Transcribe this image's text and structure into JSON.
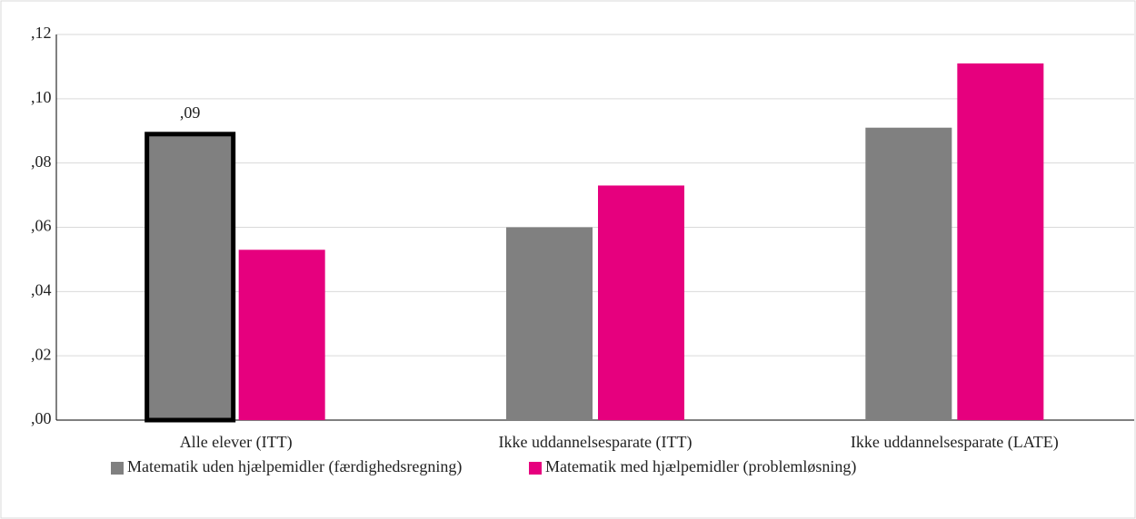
{
  "chart_data": {
    "type": "bar",
    "categories": [
      "Alle elever (ITT)",
      "Ikke uddannelsesparate (ITT)",
      "Ikke uddannelsesparate (LATE)"
    ],
    "series": [
      {
        "name": "Matematik uden hjælpemidler (færdighedsregning)",
        "color": "#808080",
        "values": [
          0.089,
          0.06,
          0.091
        ],
        "value_labels": [
          ",09",
          null,
          null
        ]
      },
      {
        "name": "Matematik med hjælpemidler (problemløsning)",
        "color": "#e6007e",
        "values": [
          0.053,
          0.073,
          0.111
        ]
      }
    ],
    "ylim": [
      0,
      0.12
    ],
    "yticks": [
      {
        "value": 0,
        "label": ",00"
      },
      {
        "value": 0.02,
        "label": ",02"
      },
      {
        "value": 0.04,
        "label": ",04"
      },
      {
        "value": 0.06,
        "label": ",06"
      },
      {
        "value": 0.08,
        "label": ",08"
      },
      {
        "value": 0.1,
        "label": ",10"
      },
      {
        "value": 0.12,
        "label": ",12"
      }
    ],
    "grid": true,
    "legend": "bottom"
  }
}
